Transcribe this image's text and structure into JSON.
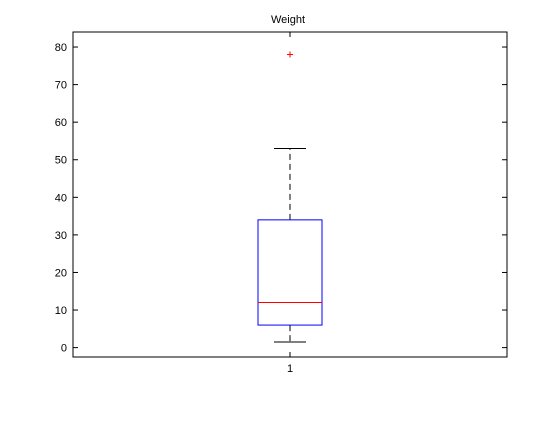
{
  "chart_data": {
    "type": "boxplot",
    "title": "Weight",
    "xlabel": "",
    "ylabel": "",
    "categories": [
      "1"
    ],
    "ylim": [
      -2.5,
      84
    ],
    "yticks": [
      0,
      10,
      20,
      30,
      40,
      50,
      60,
      70,
      80
    ],
    "grid": false,
    "boxes": [
      {
        "category": "1",
        "whisker_low": 1.5,
        "q1": 6,
        "median": 12,
        "q3": 34,
        "whisker_high": 53,
        "outliers": [
          78
        ]
      }
    ],
    "colors": {
      "box": "#0000ff",
      "median": "#ff0000",
      "whisker": "#000000",
      "outlier": "#ff0000",
      "axes": "#000000"
    }
  }
}
